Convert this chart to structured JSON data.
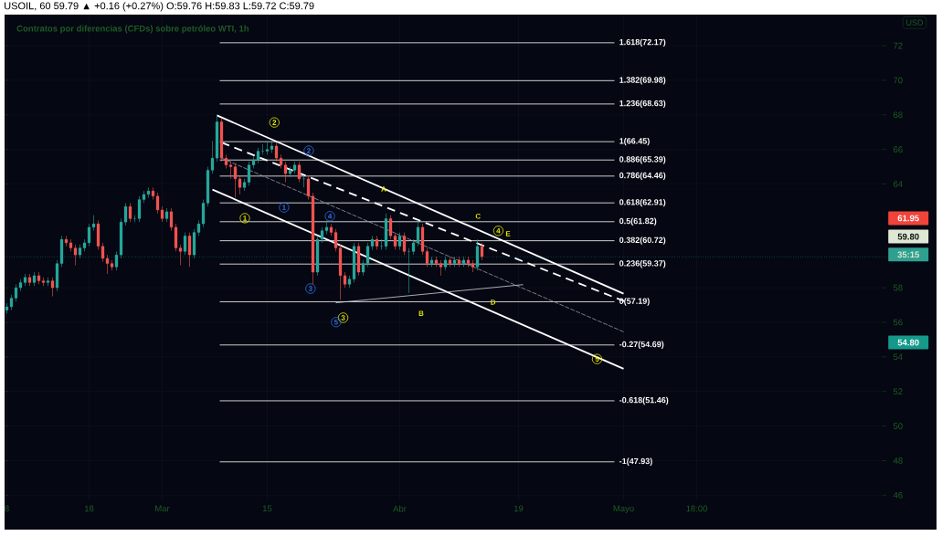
{
  "chart_data": {
    "type": "candlestick",
    "title": "USOIL, 60 59.79 ▲ +0.16 (+0.27%) O:59.76 H:59.83 L:59.72 C:59.79",
    "subtitle": "Contratos por diferencias (CFDs) sobre petróleo WTI, 1h",
    "categories": [
      "8",
      null,
      null,
      null,
      null,
      null,
      null,
      null,
      null,
      null,
      null,
      null,
      null,
      null,
      null,
      null,
      null,
      null,
      "18",
      null,
      null,
      null,
      null,
      null,
      null,
      null,
      null,
      null,
      null,
      null,
      null,
      null,
      null,
      null,
      "Mar",
      null,
      null,
      null,
      null,
      null,
      null,
      null,
      null,
      null,
      null,
      null,
      null,
      null,
      null,
      null,
      null,
      null,
      null,
      null,
      null,
      null,
      null,
      "15",
      null,
      null,
      null,
      null,
      null,
      null,
      null,
      null,
      null,
      null,
      null,
      null,
      null,
      null,
      null,
      null,
      null,
      null,
      null,
      null,
      null,
      null,
      null,
      null,
      null,
      null,
      null,
      null,
      "Abr",
      null,
      null,
      null,
      null,
      null,
      null,
      null,
      null,
      null,
      null,
      null,
      null,
      null,
      null,
      null,
      null,
      null,
      null,
      null,
      null,
      null,
      null,
      null,
      null,
      null,
      "19",
      null,
      null,
      null,
      null,
      null,
      null,
      null,
      null,
      null,
      null,
      null,
      null,
      null,
      null,
      null,
      null,
      null,
      null,
      null,
      null,
      null,
      null,
      "Mayo",
      null,
      null,
      null,
      null,
      null,
      null,
      null,
      null,
      null,
      null,
      null,
      null,
      null,
      null,
      null,
      "18:00",
      null,
      null,
      null,
      null,
      null,
      null,
      null,
      null,
      null,
      null,
      null,
      null,
      null,
      null,
      null,
      null,
      null,
      null,
      null,
      null,
      null,
      null,
      null,
      null,
      null,
      null,
      null,
      null,
      null,
      null,
      null,
      null,
      null,
      null,
      null,
      null,
      null,
      null,
      null,
      null,
      null
    ],
    "ohlc": [
      [
        56.7,
        57.1,
        56.5,
        56.9
      ],
      [
        56.9,
        57.6,
        56.7,
        57.4
      ],
      [
        57.4,
        58.2,
        57.2,
        58.0
      ],
      [
        58.0,
        58.5,
        57.8,
        58.3
      ],
      [
        58.3,
        58.8,
        58.1,
        58.6
      ],
      [
        58.6,
        58.8,
        58.1,
        58.3
      ],
      [
        58.3,
        58.9,
        58.1,
        58.7
      ],
      [
        58.7,
        58.9,
        58.2,
        58.4
      ],
      [
        58.4,
        58.6,
        58.1,
        58.3
      ],
      [
        58.3,
        58.6,
        58.1,
        58.4
      ],
      [
        58.4,
        58.6,
        57.5,
        58.0
      ],
      [
        58.0,
        59.6,
        57.8,
        59.4
      ],
      [
        59.4,
        61.0,
        59.2,
        60.8
      ],
      [
        60.8,
        61.0,
        60.4,
        60.6
      ],
      [
        60.6,
        60.8,
        60.1,
        60.3
      ],
      [
        60.3,
        60.5,
        59.3,
        59.9
      ],
      [
        59.9,
        60.5,
        59.7,
        60.3
      ],
      [
        60.3,
        60.8,
        60.1,
        60.6
      ],
      [
        60.6,
        61.7,
        60.4,
        61.5
      ],
      [
        61.5,
        62.2,
        61.3,
        61.7
      ],
      [
        61.7,
        61.9,
        60.2,
        60.4
      ],
      [
        60.4,
        60.6,
        59.5,
        59.7
      ],
      [
        59.7,
        59.9,
        58.8,
        59.4
      ],
      [
        59.4,
        59.6,
        59.0,
        59.2
      ],
      [
        59.2,
        60.1,
        59.0,
        59.9
      ],
      [
        59.9,
        62.0,
        59.7,
        61.8
      ],
      [
        61.8,
        62.9,
        61.6,
        62.7
      ],
      [
        62.7,
        62.9,
        61.8,
        62.0
      ],
      [
        62.0,
        62.2,
        61.8,
        62.0
      ],
      [
        62.0,
        63.3,
        61.8,
        63.1
      ],
      [
        63.1,
        63.6,
        62.9,
        63.4
      ],
      [
        63.4,
        63.8,
        63.2,
        63.6
      ],
      [
        63.6,
        63.8,
        63.1,
        63.3
      ],
      [
        63.3,
        63.5,
        62.3,
        62.5
      ],
      [
        62.5,
        62.7,
        61.8,
        62.0
      ],
      [
        62.0,
        62.6,
        61.8,
        62.4
      ],
      [
        62.4,
        62.6,
        61.3,
        61.5
      ],
      [
        61.5,
        61.7,
        60.1,
        60.3
      ],
      [
        60.3,
        60.5,
        59.3,
        60.1
      ],
      [
        60.1,
        61.2,
        59.9,
        61.0
      ],
      [
        61.0,
        61.2,
        59.2,
        59.9
      ],
      [
        59.9,
        61.4,
        59.7,
        61.2
      ],
      [
        61.2,
        61.9,
        61.0,
        61.7
      ],
      [
        61.7,
        63.1,
        61.5,
        62.9
      ],
      [
        62.9,
        65.0,
        62.7,
        64.8
      ],
      [
        64.8,
        66.5,
        64.6,
        65.5
      ],
      [
        65.5,
        68.0,
        65.3,
        67.6
      ],
      [
        67.6,
        67.8,
        65.3,
        65.5
      ],
      [
        65.5,
        65.7,
        64.9,
        65.1
      ],
      [
        65.1,
        65.3,
        64.3,
        65.0
      ],
      [
        65.0,
        65.2,
        63.2,
        64.3
      ],
      [
        64.3,
        64.5,
        63.4,
        63.8
      ],
      [
        63.8,
        64.3,
        63.6,
        64.1
      ],
      [
        64.1,
        65.3,
        63.9,
        65.1
      ],
      [
        65.1,
        65.6,
        64.9,
        65.4
      ],
      [
        65.4,
        66.1,
        65.2,
        65.9
      ],
      [
        65.9,
        66.3,
        65.7,
        65.9
      ],
      [
        65.9,
        66.4,
        65.7,
        66.0
      ],
      [
        66.0,
        66.5,
        65.8,
        66.2
      ],
      [
        66.2,
        66.4,
        65.3,
        65.5
      ],
      [
        65.5,
        65.7,
        64.9,
        65.1
      ],
      [
        65.1,
        65.3,
        64.1,
        64.6
      ],
      [
        64.6,
        65.0,
        64.4,
        64.8
      ],
      [
        64.8,
        65.3,
        64.6,
        65.1
      ],
      [
        65.1,
        65.3,
        64.1,
        64.3
      ],
      [
        64.3,
        64.5,
        63.8,
        64.3
      ],
      [
        64.3,
        64.5,
        63.1,
        63.3
      ],
      [
        63.3,
        63.5,
        58.2,
        58.9
      ],
      [
        58.9,
        61.0,
        58.7,
        60.8
      ],
      [
        60.8,
        61.5,
        60.6,
        61.3
      ],
      [
        61.3,
        61.9,
        61.1,
        61.5
      ],
      [
        61.5,
        61.7,
        61.0,
        61.2
      ],
      [
        61.2,
        61.4,
        60.1,
        60.3
      ],
      [
        60.3,
        60.5,
        57.3,
        58.7
      ],
      [
        58.7,
        58.9,
        58.0,
        58.2
      ],
      [
        58.2,
        58.7,
        58.0,
        58.5
      ],
      [
        58.5,
        60.6,
        58.3,
        60.4
      ],
      [
        60.4,
        60.6,
        58.7,
        58.9
      ],
      [
        58.9,
        59.6,
        58.7,
        59.4
      ],
      [
        59.4,
        60.6,
        59.2,
        60.4
      ],
      [
        60.4,
        61.0,
        60.2,
        60.8
      ],
      [
        60.8,
        61.0,
        60.2,
        60.4
      ],
      [
        60.4,
        60.8,
        60.2,
        60.4
      ],
      [
        60.4,
        62.3,
        60.2,
        62.0
      ],
      [
        62.0,
        62.2,
        60.8,
        61.0
      ],
      [
        61.0,
        61.2,
        60.2,
        60.4
      ],
      [
        60.4,
        61.2,
        60.2,
        61.0
      ],
      [
        61.0,
        61.2,
        59.9,
        60.1
      ],
      [
        60.1,
        60.3,
        57.7,
        60.1
      ],
      [
        60.1,
        60.8,
        59.9,
        60.6
      ],
      [
        60.6,
        61.9,
        60.4,
        61.5
      ],
      [
        61.5,
        61.7,
        59.9,
        60.1
      ],
      [
        60.1,
        60.3,
        59.2,
        59.4
      ],
      [
        59.4,
        59.8,
        59.2,
        59.6
      ],
      [
        59.6,
        59.8,
        59.2,
        59.4
      ],
      [
        59.4,
        59.6,
        58.7,
        59.2
      ],
      [
        59.2,
        59.8,
        59.0,
        59.6
      ],
      [
        59.6,
        59.8,
        59.2,
        59.4
      ],
      [
        59.4,
        59.8,
        59.2,
        59.6
      ],
      [
        59.6,
        59.8,
        59.2,
        59.4
      ],
      [
        59.4,
        59.8,
        59.2,
        59.6
      ],
      [
        59.6,
        59.8,
        59.2,
        59.4
      ],
      [
        59.4,
        59.6,
        58.9,
        59.2
      ],
      [
        59.2,
        60.8,
        59.0,
        60.4
      ],
      [
        60.4,
        60.6,
        59.6,
        59.8
      ],
      null,
      null,
      null,
      null,
      null,
      null,
      null,
      null,
      null,
      null,
      null,
      null,
      null,
      null,
      null,
      null,
      null,
      null,
      null,
      null,
      null,
      null,
      null,
      null,
      null,
      null,
      null,
      null,
      null,
      null,
      null,
      null,
      null,
      null,
      null,
      null,
      null,
      null,
      null,
      null,
      null,
      null,
      null,
      null,
      null,
      null,
      null,
      null,
      null,
      null,
      null,
      null,
      null,
      null,
      null,
      null,
      null,
      null,
      null,
      null,
      null,
      null,
      null,
      null,
      null,
      null,
      null,
      null,
      null,
      null,
      null,
      null,
      null,
      null,
      null,
      null,
      null,
      null,
      null,
      null,
      null,
      null,
      null,
      null,
      null,
      null,
      null,
      null
    ],
    "series": [
      {
        "type": "line",
        "color": "#ffffff",
        "line_style": "solid",
        "values": [
          null,
          null,
          null,
          null,
          null,
          null,
          null,
          null,
          null,
          null,
          null,
          null,
          null,
          null,
          null,
          null,
          null,
          null,
          null,
          null,
          null,
          null,
          null,
          null,
          null,
          null,
          null,
          null,
          null,
          null,
          null,
          null,
          null,
          null,
          null,
          null,
          null,
          null,
          null,
          null,
          null,
          null,
          null,
          null,
          null,
          null,
          67.97,
          null,
          null,
          null,
          null,
          null,
          null,
          null,
          null,
          null,
          null,
          null,
          null,
          null,
          null,
          null,
          null,
          null,
          null,
          null,
          null,
          null,
          null,
          null,
          null,
          null,
          null,
          null,
          null,
          null,
          null,
          null,
          null,
          null,
          null,
          null,
          null,
          null,
          null,
          null,
          null,
          null,
          null,
          null,
          null,
          null,
          null,
          null,
          null,
          null,
          null,
          null,
          null,
          null,
          null,
          null,
          null,
          null,
          null,
          null,
          null,
          null,
          null,
          null,
          null,
          null,
          null,
          null,
          null,
          null,
          null,
          null,
          null,
          null,
          null,
          null,
          null,
          null,
          null,
          null,
          null,
          null,
          null,
          null,
          null,
          null,
          null,
          null,
          null,
          57.66,
          null,
          null,
          null,
          null,
          null,
          null,
          null,
          null,
          null,
          null,
          null,
          null,
          null,
          null,
          null,
          null,
          null,
          null,
          null,
          null,
          null,
          null,
          null,
          null,
          null,
          null,
          null,
          null,
          null,
          null,
          null,
          null,
          null,
          null,
          null,
          null,
          null,
          null,
          null,
          null,
          null,
          null,
          null,
          null,
          null,
          null,
          null,
          null,
          null,
          null,
          null,
          null,
          null,
          null,
          null,
          null,
          null
        ]
      },
      {
        "type": "line",
        "color": "#ffffff",
        "line_style": "solid",
        "values": [
          null,
          null,
          null,
          null,
          null,
          null,
          null,
          null,
          null,
          null,
          null,
          null,
          null,
          null,
          null,
          null,
          null,
          null,
          null,
          null,
          null,
          null,
          null,
          null,
          null,
          null,
          null,
          null,
          null,
          null,
          null,
          null,
          null,
          null,
          null,
          null,
          null,
          null,
          null,
          null,
          null,
          null,
          null,
          null,
          null,
          63.68,
          null,
          null,
          null,
          null,
          null,
          null,
          null,
          null,
          null,
          null,
          null,
          null,
          null,
          null,
          null,
          null,
          null,
          null,
          null,
          null,
          null,
          null,
          null,
          null,
          null,
          null,
          null,
          null,
          null,
          null,
          null,
          null,
          null,
          null,
          null,
          null,
          null,
          null,
          null,
          null,
          null,
          null,
          null,
          null,
          null,
          null,
          null,
          null,
          null,
          null,
          null,
          null,
          null,
          null,
          null,
          null,
          null,
          null,
          null,
          null,
          null,
          null,
          null,
          null,
          null,
          null,
          null,
          null,
          null,
          null,
          null,
          null,
          null,
          null,
          null,
          null,
          null,
          null,
          null,
          null,
          null,
          null,
          null,
          null,
          null,
          null,
          null,
          null,
          null,
          53.31,
          null,
          null,
          null,
          null,
          null,
          null,
          null,
          null,
          null,
          null,
          null,
          null,
          null,
          null,
          null,
          null,
          null,
          null,
          null,
          null,
          null,
          null,
          null,
          null,
          null,
          null,
          null,
          null,
          null,
          null,
          null,
          null,
          null,
          null,
          null,
          null,
          null,
          null,
          null,
          null,
          null,
          null,
          null,
          null,
          null,
          null,
          null,
          null,
          null,
          null,
          null,
          null,
          null,
          null,
          null,
          null,
          null
        ]
      },
      {
        "type": "line",
        "color": "#ffffff",
        "line_style": "dashed",
        "values": [
          null,
          null,
          null,
          null,
          null,
          null,
          null,
          null,
          null,
          null,
          null,
          null,
          null,
          null,
          null,
          null,
          null,
          null,
          null,
          null,
          null,
          null,
          null,
          null,
          null,
          null,
          null,
          null,
          null,
          null,
          null,
          null,
          null,
          null,
          null,
          null,
          null,
          null,
          null,
          null,
          null,
          null,
          null,
          null,
          null,
          null,
          null,
          66.4,
          null,
          null,
          null,
          null,
          null,
          null,
          null,
          null,
          null,
          null,
          null,
          null,
          null,
          null,
          null,
          null,
          null,
          null,
          null,
          null,
          null,
          null,
          null,
          null,
          null,
          null,
          null,
          null,
          null,
          null,
          null,
          null,
          null,
          null,
          null,
          null,
          null,
          null,
          null,
          null,
          null,
          null,
          null,
          null,
          null,
          null,
          null,
          null,
          null,
          null,
          null,
          null,
          null,
          null,
          null,
          null,
          null,
          null,
          null,
          null,
          null,
          null,
          null,
          null,
          null,
          null,
          null,
          null,
          null,
          null,
          null,
          null,
          null,
          null,
          null,
          null,
          null,
          null,
          null,
          null,
          null,
          null,
          null,
          null,
          null,
          null,
          null,
          null,
          57.13,
          null,
          null,
          null,
          null,
          null,
          null,
          null,
          null,
          null,
          null,
          null,
          null,
          null,
          null,
          null,
          null,
          null,
          null,
          null,
          null,
          null,
          null,
          null,
          null,
          null,
          null,
          null,
          null,
          null,
          null,
          null,
          null,
          null,
          null,
          null,
          null,
          null,
          null,
          null,
          null,
          null,
          null,
          null,
          null,
          null,
          null,
          null,
          null,
          null,
          null,
          null,
          null,
          null,
          null,
          null,
          null
        ]
      },
      {
        "type": "line",
        "color": "#9598a1",
        "line_style": "dashed",
        "values": [
          null,
          null,
          null,
          null,
          null,
          null,
          null,
          null,
          null,
          null,
          null,
          null,
          null,
          null,
          null,
          null,
          null,
          null,
          null,
          null,
          null,
          null,
          null,
          null,
          null,
          null,
          null,
          null,
          null,
          null,
          null,
          null,
          null,
          null,
          null,
          null,
          null,
          null,
          null,
          null,
          null,
          null,
          null,
          null,
          null,
          null,
          null,
          65.5,
          null,
          null,
          null,
          null,
          null,
          null,
          null,
          null,
          null,
          null,
          null,
          null,
          null,
          null,
          null,
          null,
          null,
          null,
          null,
          null,
          null,
          null,
          null,
          null,
          null,
          null,
          null,
          null,
          null,
          null,
          null,
          null,
          null,
          null,
          null,
          null,
          null,
          null,
          null,
          null,
          null,
          null,
          null,
          null,
          null,
          null,
          null,
          null,
          null,
          null,
          null,
          null,
          null,
          null,
          null,
          null,
          null,
          null,
          null,
          null,
          null,
          null,
          null,
          null,
          null,
          null,
          null,
          null,
          null,
          null,
          null,
          null,
          null,
          null,
          null,
          null,
          null,
          null,
          null,
          null,
          null,
          null,
          null,
          null,
          null,
          null,
          null,
          55.45,
          null,
          null,
          null,
          null,
          null,
          null,
          null,
          null,
          null,
          null,
          null,
          null,
          null,
          null,
          null,
          null,
          null,
          null,
          null,
          null,
          null,
          null,
          null,
          null,
          null,
          null,
          null,
          null,
          null,
          null,
          null,
          null,
          null,
          null,
          null,
          null,
          null,
          null,
          null,
          null,
          null,
          null,
          null,
          null,
          null,
          null,
          null,
          null,
          null,
          null,
          null,
          null,
          null,
          null,
          null,
          null,
          null
        ]
      },
      {
        "type": "line",
        "color": "#d1d4dc",
        "line_style": "solid",
        "values": [
          null,
          null,
          null,
          null,
          null,
          null,
          null,
          null,
          null,
          null,
          null,
          null,
          null,
          null,
          null,
          null,
          null,
          null,
          null,
          null,
          null,
          null,
          null,
          null,
          null,
          null,
          null,
          null,
          null,
          null,
          null,
          null,
          null,
          null,
          null,
          null,
          null,
          null,
          null,
          null,
          null,
          null,
          null,
          null,
          null,
          null,
          null,
          null,
          null,
          null,
          null,
          null,
          null,
          null,
          null,
          null,
          null,
          null,
          null,
          null,
          null,
          null,
          null,
          null,
          null,
          null,
          null,
          null,
          null,
          null,
          null,
          null,
          57.13,
          null,
          null,
          null,
          null,
          null,
          null,
          null,
          null,
          null,
          null,
          null,
          null,
          null,
          null,
          null,
          null,
          null,
          null,
          null,
          null,
          null,
          null,
          null,
          null,
          null,
          null,
          null,
          null,
          null,
          null,
          null,
          null,
          null,
          null,
          null,
          null,
          null,
          null,
          null,
          null,
          58.18,
          null,
          null,
          null,
          null,
          null,
          null,
          null,
          null,
          null,
          null,
          null,
          null,
          null,
          null,
          null,
          null,
          null,
          null,
          null,
          null,
          null,
          null,
          null,
          null,
          null,
          null,
          null,
          null,
          null,
          null,
          null,
          null,
          null,
          null,
          null,
          null,
          null,
          null,
          null,
          null,
          null,
          null,
          null,
          null,
          null,
          null,
          null,
          null,
          null,
          null,
          null,
          null,
          null,
          null,
          null,
          null,
          null,
          null,
          null,
          null,
          null,
          null,
          null,
          null,
          null,
          null,
          null,
          null,
          null,
          null,
          null,
          null,
          null,
          null,
          null,
          null,
          null,
          null,
          null
        ]
      }
    ],
    "ylim": [
      45.7,
      73.8
    ],
    "yticks": [
      46,
      48,
      50,
      52,
      54,
      56,
      58,
      64,
      66,
      68,
      70,
      72
    ],
    "grid": true,
    "ref_lines": [
      {
        "axis": "y",
        "value": 72.17,
        "label": "1.618(72.17)",
        "color": "#ffffff"
      },
      {
        "axis": "y",
        "value": 69.98,
        "label": "1.382(69.98)",
        "color": "#ffffff"
      },
      {
        "axis": "y",
        "value": 68.63,
        "label": "1.236(68.63)",
        "color": "#ffffff"
      },
      {
        "axis": "y",
        "value": 66.45,
        "label": "1(66.45)",
        "color": "#ffffff"
      },
      {
        "axis": "y",
        "value": 65.39,
        "label": "0.886(65.39)",
        "color": "#ffffff"
      },
      {
        "axis": "y",
        "value": 64.46,
        "label": "0.786(64.46)",
        "color": "#ffffff"
      },
      {
        "axis": "y",
        "value": 62.91,
        "label": "0.618(62.91)",
        "color": "#ffffff"
      },
      {
        "axis": "y",
        "value": 61.82,
        "label": "0.5(61.82)",
        "color": "#ffffff"
      },
      {
        "axis": "y",
        "value": 60.72,
        "label": "0.382(60.72)",
        "color": "#ffffff"
      },
      {
        "axis": "y",
        "value": 59.37,
        "label": "0.236(59.37)",
        "color": "#ffffff"
      },
      {
        "axis": "y",
        "value": 57.19,
        "label": "0(57.19)",
        "color": "#ffffff"
      },
      {
        "axis": "y",
        "value": 54.69,
        "label": "-0.27(54.69)",
        "color": "#ffffff"
      },
      {
        "axis": "y",
        "value": 51.46,
        "label": "-0.618(51.46)",
        "color": "#ffffff"
      },
      {
        "axis": "y",
        "value": 47.93,
        "label": "-1(47.93)",
        "color": "#ffffff"
      },
      {
        "axis": "y",
        "value": 59.79,
        "color": "#26a69a",
        "line_style": "dotted"
      }
    ],
    "annotations": [
      "1",
      "2",
      "3",
      "4",
      "5",
      "1",
      "2",
      "3",
      "4",
      "5",
      "A",
      "B",
      "C",
      "D",
      "E",
      "61.95",
      "59.80",
      "35:15",
      "54.80",
      "USD"
    ]
  }
}
